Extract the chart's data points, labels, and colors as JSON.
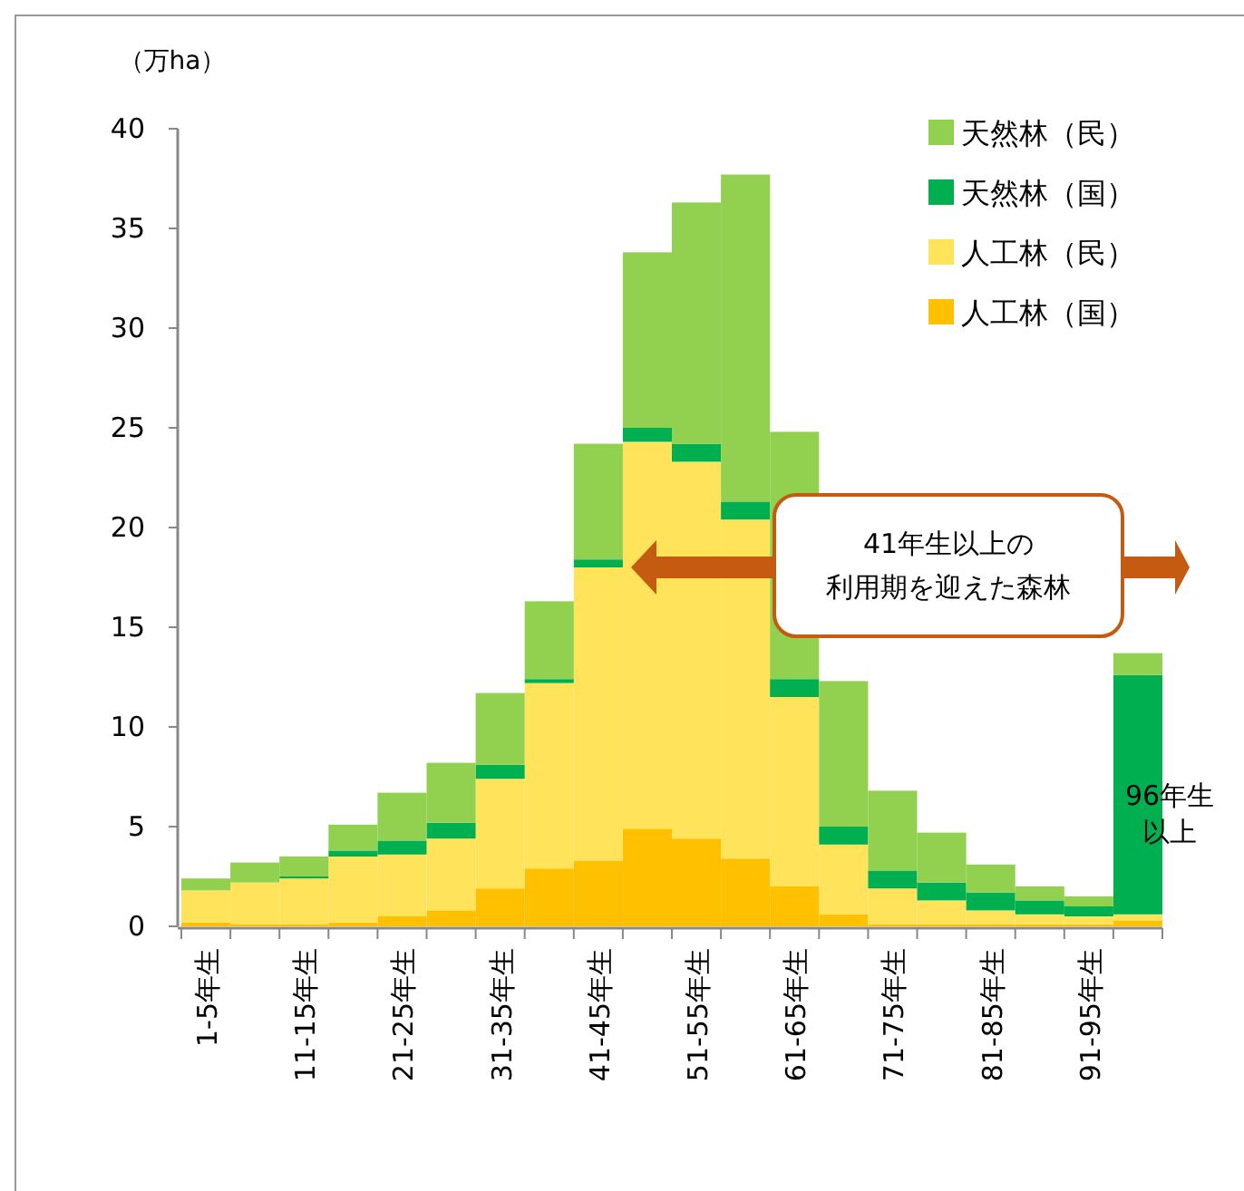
{
  "chart_data": {
    "type": "bar",
    "stacked": true,
    "ylabel": "（万ha）",
    "categories": [
      "1-5年生",
      null,
      "11-15年生",
      null,
      "21-25年生",
      null,
      "31-35年生",
      null,
      "41-45年生",
      null,
      "51-55年生",
      null,
      "61-65年生",
      null,
      "71-75年生",
      null,
      "81-85年生",
      null,
      "91-95年生",
      null
    ],
    "series": [
      {
        "name": "人工林（国）",
        "color": "#ffc000",
        "values": [
          0.2,
          0.1,
          0.1,
          0.2,
          0.5,
          0.8,
          1.9,
          2.9,
          3.3,
          4.9,
          4.4,
          3.4,
          2.0,
          0.6,
          0.1,
          0.1,
          0.1,
          0.1,
          0.1,
          0.3
        ]
      },
      {
        "name": "人工林（民）",
        "color": "#ffe35a",
        "values": [
          1.6,
          2.1,
          2.3,
          3.3,
          3.1,
          3.6,
          5.5,
          9.3,
          14.7,
          19.4,
          18.9,
          17.0,
          9.5,
          3.5,
          1.8,
          1.2,
          0.7,
          0.5,
          0.4,
          0.3
        ]
      },
      {
        "name": "天然林（国）",
        "color": "#00b050",
        "values": [
          0,
          0,
          0.1,
          0.3,
          0.7,
          0.8,
          0.7,
          0.2,
          0.4,
          0.7,
          0.9,
          0.9,
          0.9,
          0.9,
          0.9,
          0.9,
          0.9,
          0.7,
          0.5,
          12.0
        ]
      },
      {
        "name": "天然林（民）",
        "color": "#92d050",
        "values": [
          0.6,
          1.0,
          1.0,
          1.3,
          2.4,
          3.0,
          3.6,
          3.9,
          5.8,
          8.8,
          12.1,
          16.4,
          12.4,
          7.3,
          4.0,
          2.5,
          1.4,
          0.7,
          0.5,
          1.1
        ]
      }
    ],
    "ylim": [
      0,
      40
    ],
    "yticks": [
      0,
      5,
      10,
      15,
      20,
      25,
      30,
      35,
      40
    ],
    "legend": "top right",
    "annotations": [
      "41年生以上の利用期を迎えた森林",
      "96年生以上"
    ]
  }
}
